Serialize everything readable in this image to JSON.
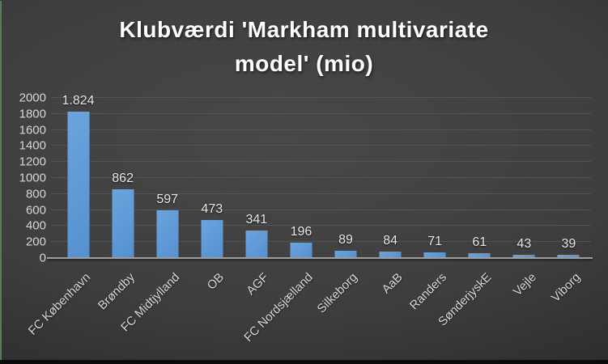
{
  "chart_data": {
    "type": "bar",
    "title": "Klubværdi 'Markham multivariate model' (mio)",
    "title_lines": [
      "Klubværdi 'Markham multivariate",
      "model' (mio)"
    ],
    "categories": [
      "FC København",
      "Brøndby",
      "FC Midtjylland",
      "OB",
      "AGF",
      "FC Nordsjælland",
      "Silkeborg",
      "AaB",
      "Randers",
      "SønderjyskE",
      "Vejle",
      "Viborg"
    ],
    "values": [
      1824,
      862,
      597,
      473,
      341,
      196,
      89,
      84,
      71,
      61,
      43,
      39
    ],
    "value_labels": [
      "1.824",
      "862",
      "597",
      "473",
      "341",
      "196",
      "89",
      "84",
      "71",
      "61",
      "43",
      "39"
    ],
    "xlabel": "",
    "ylabel": "",
    "ylim": [
      0,
      2000
    ],
    "y_ticks": [
      0,
      200,
      400,
      600,
      800,
      1000,
      1200,
      1400,
      1600,
      1800,
      2000
    ],
    "grid": true,
    "legend": false,
    "colors": {
      "bar_gradient_top": "#6BA4DE",
      "bar_gradient_bottom": "#5591D0",
      "grid_color": "#5A5A5A",
      "axis_color": "#9D9D9D",
      "tick_text_color": "#D6D6D6",
      "title_color": "#FFFFFF"
    }
  }
}
